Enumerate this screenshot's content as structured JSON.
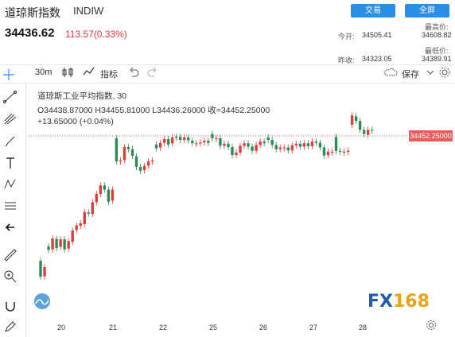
{
  "header": {
    "name": "道琼斯指数",
    "code": "INDIW",
    "trade_btn": "交易",
    "fullscreen_btn": "全屏",
    "price": "34436.62",
    "change": "113.57(0.33%)",
    "stats": [
      {
        "label": "今开:",
        "value": "34505.41"
      },
      {
        "label": "最高价:",
        "value": "34608.82"
      },
      {
        "label": "昨收:",
        "value": "34323.05"
      },
      {
        "label": "最低价:",
        "value": "34389.91"
      }
    ]
  },
  "toolbar": {
    "interval": "30m",
    "indicators": "指标",
    "save": "保存"
  },
  "legend": {
    "title": "道琼斯工业平均指数, 30",
    "ohlc": "O34438.87000  H34455.81000  L34436.26000  收=34452.25000",
    "change": "+13.65000 (+0.04%)"
  },
  "current_price_tag": "34452.25000",
  "brand": {
    "fx": "FX",
    "num": "168"
  },
  "colors": {
    "up": "#e03c3c",
    "down": "#2e8b57",
    "accent": "#2a8ee5"
  },
  "chart_data": {
    "type": "candlestick",
    "x_tick_labels": [
      "20",
      "21",
      "22",
      "25",
      "26",
      "27",
      "28"
    ],
    "last_price": 34452.25,
    "candles": [
      {
        "o": 0.0,
        "c": 0.0
      },
      {
        "o": 0.79,
        "c": 0.41
      },
      {
        "o": 0.42,
        "c": 0.64
      },
      {
        "o": 1.13,
        "c": 1.05
      },
      {
        "o": 1.06,
        "c": 1.32
      },
      {
        "o": 1.31,
        "c": 1.09
      },
      {
        "o": 1.12,
        "c": 1.3
      },
      {
        "o": 1.3,
        "c": 1.06
      },
      {
        "o": 1.08,
        "c": 1.26
      },
      {
        "o": 1.24,
        "c": 1.51
      },
      {
        "o": 1.52,
        "c": 1.63
      },
      {
        "o": 1.62,
        "c": 1.68
      },
      {
        "o": 1.66,
        "c": 1.95
      },
      {
        "o": 1.94,
        "c": 1.91
      },
      {
        "o": 1.9,
        "c": 2.18
      },
      {
        "o": 2.18,
        "c": 2.38
      },
      {
        "o": 2.38,
        "c": 2.58
      },
      {
        "o": 2.58,
        "c": 2.48
      },
      {
        "o": 2.48,
        "c": 2.19
      },
      {
        "o": 2.22,
        "c": 2.48
      },
      {
        "o": 3.7,
        "c": 3.15
      },
      {
        "o": 3.15,
        "c": 3.17
      },
      {
        "o": 3.18,
        "c": 3.49
      },
      {
        "o": 3.49,
        "c": 3.44
      },
      {
        "o": 3.44,
        "c": 3.28
      },
      {
        "o": 3.27,
        "c": 3.02
      },
      {
        "o": 3.02,
        "c": 2.93
      },
      {
        "o": 2.94,
        "c": 3.04
      },
      {
        "o": 3.05,
        "c": 3.15
      },
      {
        "o": 3.15,
        "c": 3.17
      },
      {
        "o": 3.55,
        "c": 3.46
      },
      {
        "o": 3.48,
        "c": 3.59
      },
      {
        "o": 3.59,
        "c": 3.68
      },
      {
        "o": 3.68,
        "c": 3.55
      },
      {
        "o": 3.58,
        "c": 3.72
      },
      {
        "o": 3.74,
        "c": 3.72
      },
      {
        "o": 3.73,
        "c": 3.66
      },
      {
        "o": 3.66,
        "c": 3.72
      },
      {
        "o": 3.72,
        "c": 3.65
      },
      {
        "o": 3.64,
        "c": 3.58
      },
      {
        "o": 3.58,
        "c": 3.58
      },
      {
        "o": 3.58,
        "c": 3.6
      },
      {
        "o": 3.6,
        "c": 3.64
      },
      {
        "o": 3.64,
        "c": 3.59
      },
      {
        "o": 3.8,
        "c": 3.7
      },
      {
        "o": 3.7,
        "c": 3.7
      },
      {
        "o": 3.7,
        "c": 3.52
      },
      {
        "o": 3.52,
        "c": 3.57
      },
      {
        "o": 3.57,
        "c": 3.49
      },
      {
        "o": 3.49,
        "c": 3.3
      },
      {
        "o": 3.3,
        "c": 3.36
      },
      {
        "o": 3.36,
        "c": 3.52
      },
      {
        "o": 3.52,
        "c": 3.58
      },
      {
        "o": 3.58,
        "c": 3.5
      },
      {
        "o": 3.5,
        "c": 3.4
      },
      {
        "o": 3.4,
        "c": 3.54
      },
      {
        "o": 3.54,
        "c": 3.62
      },
      {
        "o": 3.62,
        "c": 3.58
      },
      {
        "o": 3.72,
        "c": 3.66
      },
      {
        "o": 3.66,
        "c": 3.54
      },
      {
        "o": 3.54,
        "c": 3.44
      },
      {
        "o": 3.44,
        "c": 3.48
      },
      {
        "o": 3.48,
        "c": 3.48
      },
      {
        "o": 3.48,
        "c": 3.41
      },
      {
        "o": 3.41,
        "c": 3.53
      },
      {
        "o": 3.53,
        "c": 3.57
      },
      {
        "o": 3.57,
        "c": 3.5
      },
      {
        "o": 3.5,
        "c": 3.58
      },
      {
        "o": 3.58,
        "c": 3.51
      },
      {
        "o": 3.51,
        "c": 3.62
      },
      {
        "o": 3.62,
        "c": 3.59
      },
      {
        "o": 3.59,
        "c": 3.48
      },
      {
        "o": 3.48,
        "c": 3.29
      },
      {
        "o": 3.3,
        "c": 3.38
      },
      {
        "o": 3.38,
        "c": 3.38
      },
      {
        "o": 3.73,
        "c": 3.4
      },
      {
        "o": 3.4,
        "c": 3.38
      },
      {
        "o": 3.38,
        "c": 3.38
      },
      {
        "o": 3.38,
        "c": 3.4
      },
      {
        "o": 4.02,
        "c": 4.24
      },
      {
        "o": 4.22,
        "c": 4.11
      },
      {
        "o": 4.11,
        "c": 3.9
      },
      {
        "o": 3.9,
        "c": 3.8
      },
      {
        "o": 3.78,
        "c": 3.9
      },
      {
        "o": 3.9,
        "c": 3.88
      }
    ]
  }
}
